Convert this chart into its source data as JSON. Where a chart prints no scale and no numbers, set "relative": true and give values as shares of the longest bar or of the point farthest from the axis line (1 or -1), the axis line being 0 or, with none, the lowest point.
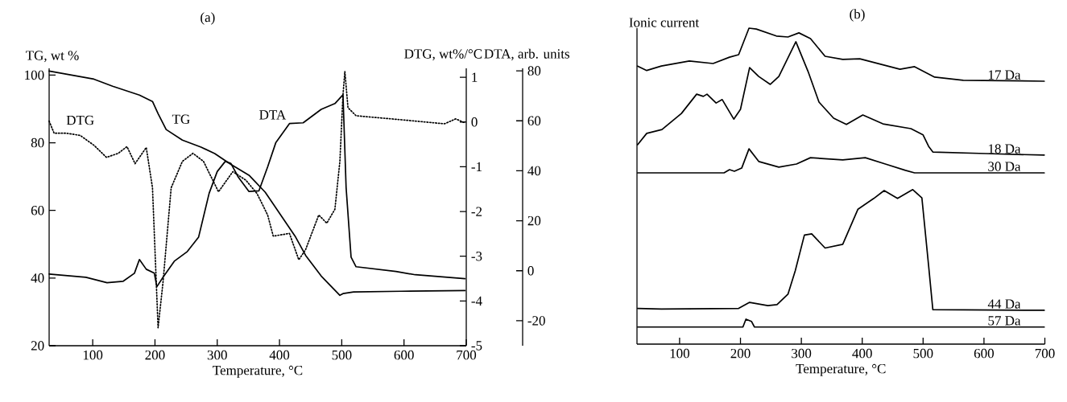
{
  "chart_data": [
    {
      "type": "line",
      "title": "(a)",
      "xlabel": "Temperature, °C",
      "ylabel": "TG, wt %",
      "y2label": "DTG, wt%/°C",
      "y3label": "DTA, arb. units",
      "xlim": [
        30,
        700
      ],
      "xticks": [
        100,
        200,
        300,
        400,
        500,
        600,
        700
      ],
      "ylim": [
        20,
        102
      ],
      "yticks": [
        20,
        40,
        60,
        80,
        100
      ],
      "y2lim": [
        -5,
        1.2
      ],
      "y2ticks": [
        -5,
        -4,
        -3,
        -2,
        -1,
        0,
        1
      ],
      "y3lim": [
        -30,
        81
      ],
      "y3ticks": [
        -20,
        0,
        20,
        40,
        60,
        80
      ],
      "series": [
        {
          "name": "DTG",
          "color": "#000000",
          "axis": "y2",
          "line_style": "dotted",
          "x": [
            30,
            38,
            58,
            80,
            102,
            122,
            141,
            155,
            168,
            186,
            196,
            205,
            213,
            226,
            244,
            261,
            278,
            302,
            325,
            346,
            364,
            381,
            390,
            416,
            431,
            442,
            463,
            476,
            489,
            497,
            502,
            505,
            510,
            523,
            596,
            665,
            683,
            698
          ],
          "values": [
            0.02,
            -0.25,
            -0.25,
            -0.3,
            -0.52,
            -0.79,
            -0.7,
            -0.55,
            -0.93,
            -0.57,
            -1.47,
            -4.6,
            -3.57,
            -1.47,
            -0.88,
            -0.7,
            -0.88,
            -1.56,
            -1.11,
            -1.3,
            -1.6,
            -2.08,
            -2.55,
            -2.49,
            -3.08,
            -2.85,
            -2.08,
            -2.26,
            -1.95,
            -0.88,
            0.61,
            1.13,
            0.32,
            0.14,
            0.05,
            -0.04,
            0.07,
            -0.02
          ]
        },
        {
          "name": "TG",
          "color": "#000000",
          "axis": "y",
          "line_style": "solid",
          "x": [
            30,
            102,
            132,
            175,
            196,
            205,
            218,
            244,
            274,
            296,
            321,
            351,
            377,
            425,
            442,
            467,
            497,
            502,
            519,
            596,
            698
          ],
          "values": [
            101.2,
            98.8,
            96.7,
            94.1,
            92.2,
            88.6,
            83.9,
            80.8,
            78.7,
            76.8,
            73.7,
            70.4,
            65.4,
            52.4,
            46.7,
            40.6,
            34.9,
            35.4,
            35.9,
            36.1,
            36.3
          ]
        },
        {
          "name": "DTA",
          "color": "#000000",
          "axis": "y3",
          "line_style": "solid",
          "x": [
            30,
            89,
            123,
            149,
            167,
            175,
            186,
            199,
            203,
            213,
            231,
            252,
            270,
            287,
            300,
            313,
            322,
            334,
            351,
            367,
            381,
            394,
            416,
            438,
            467,
            489,
            502,
            507,
            515,
            523,
            587,
            618,
            698
          ],
          "values": [
            -1.3,
            -2.6,
            -4.8,
            -4.2,
            -1,
            4.5,
            0.6,
            -1,
            -6.4,
            -2.6,
            3.8,
            7.7,
            13.4,
            31,
            39.7,
            43.8,
            42.9,
            37.4,
            31.7,
            32,
            41.6,
            51.2,
            58.9,
            59.2,
            64.6,
            66.9,
            70.4,
            33.3,
            5.4,
            1.6,
            -0.3,
            -1.6,
            -3.2
          ]
        }
      ]
    },
    {
      "type": "line",
      "title": "(b)",
      "xlabel": "Temperature, °C",
      "ylabel": "Ionic current",
      "relative": true,
      "tick_labels": "x",
      "xlim": [
        30,
        700
      ],
      "xticks": [
        100,
        200,
        300,
        400,
        500,
        600,
        700
      ],
      "series": [
        {
          "name": "17 Da",
          "color": "#000000",
          "x": [
            31,
            46,
            70,
            116,
            155,
            182,
            197,
            214,
            226,
            259,
            278,
            296,
            315,
            339,
            368,
            396,
            462,
            486,
            519,
            566,
            699
          ],
          "values": [
            0.88,
            0.866,
            0.88,
            0.896,
            0.888,
            0.908,
            0.916,
            1,
            0.997,
            0.975,
            0.972,
            0.985,
            0.967,
            0.911,
            0.901,
            0.903,
            0.87,
            0.878,
            0.845,
            0.835,
            0.832
          ]
        },
        {
          "name": "18 Da",
          "color": "#000000",
          "x": [
            31,
            46,
            71,
            103,
            128,
            139,
            145,
            160,
            170,
            189,
            200,
            215,
            230,
            249,
            263,
            291,
            311,
            329,
            353,
            374,
            401,
            434,
            480,
            500,
            509,
            516,
            603,
            699
          ],
          "values": [
            0.631,
            0.667,
            0.679,
            0.73,
            0.791,
            0.784,
            0.791,
            0.763,
            0.774,
            0.712,
            0.743,
            0.875,
            0.847,
            0.822,
            0.847,
            0.957,
            0.863,
            0.766,
            0.715,
            0.695,
            0.725,
            0.697,
            0.682,
            0.662,
            0.626,
            0.608,
            0.603,
            0.598
          ]
        },
        {
          "name": "30 Da",
          "color": "#000000",
          "x": [
            31,
            173,
            182,
            190,
            202,
            214,
            230,
            263,
            292,
            315,
            368,
            405,
            438,
            471,
            486,
            699
          ],
          "values": [
            0.542,
            0.542,
            0.552,
            0.547,
            0.557,
            0.618,
            0.578,
            0.56,
            0.57,
            0.59,
            0.583,
            0.59,
            0.57,
            0.55,
            0.542,
            0.542
          ]
        },
        {
          "name": "44 Da",
          "color": "#000000",
          "x": [
            31,
            70,
            197,
            215,
            245,
            260,
            278,
            290,
            305,
            317,
            339,
            368,
            393,
            419,
            436,
            458,
            483,
            498,
            509,
            516,
            699
          ],
          "values": [
            0.113,
            0.111,
            0.113,
            0.132,
            0.122,
            0.125,
            0.158,
            0.232,
            0.345,
            0.349,
            0.304,
            0.316,
            0.427,
            0.461,
            0.486,
            0.461,
            0.489,
            0.463,
            0.249,
            0.109,
            0.107
          ]
        },
        {
          "name": "57 Da",
          "color": "#000000",
          "x": [
            31,
            204,
            209,
            218,
            223,
            699
          ],
          "values": [
            0.054,
            0.054,
            0.079,
            0.072,
            0.054,
            0.054
          ]
        }
      ]
    }
  ]
}
